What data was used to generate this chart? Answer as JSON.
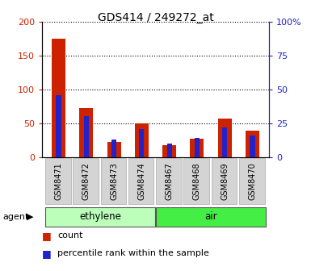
{
  "title": "GDS414 / 249272_at",
  "categories": [
    "GSM8471",
    "GSM8472",
    "GSM8473",
    "GSM8474",
    "GSM8467",
    "GSM8468",
    "GSM8469",
    "GSM8470"
  ],
  "count_values": [
    175,
    73,
    22,
    50,
    18,
    27,
    57,
    39
  ],
  "percentile_values": [
    46,
    30,
    13,
    21,
    10,
    14,
    22,
    16
  ],
  "groups": [
    {
      "label": "ethylene",
      "indices": [
        0,
        1,
        2,
        3
      ],
      "color": "#bbffbb"
    },
    {
      "label": "air",
      "indices": [
        4,
        5,
        6,
        7
      ],
      "color": "#44ee44"
    }
  ],
  "group_row_label": "agent",
  "bar_color_count": "#cc2200",
  "bar_color_percentile": "#2222cc",
  "ylim_left": [
    0,
    200
  ],
  "ylim_right": [
    0,
    100
  ],
  "yticks_left": [
    0,
    50,
    100,
    150,
    200
  ],
  "yticks_right": [
    0,
    25,
    50,
    75,
    100
  ],
  "ytick_labels_left": [
    "0",
    "50",
    "100",
    "150",
    "200"
  ],
  "ytick_labels_right": [
    "0",
    "25",
    "50",
    "75",
    "100%"
  ],
  "legend_count": "count",
  "legend_percentile": "percentile rank within the sample",
  "plot_bg": "#ffffff",
  "tick_label_bg": "#cccccc",
  "count_bar_width": 0.5,
  "pct_bar_width": 0.18
}
